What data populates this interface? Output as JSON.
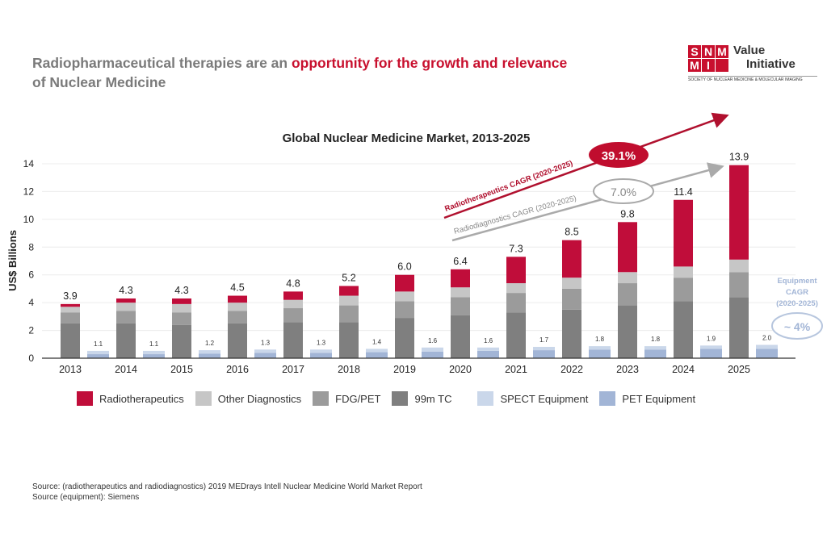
{
  "headline": {
    "part1": "Radiopharmaceutical therapies are an ",
    "highlight": "opportunity for the growth and relevance",
    "part2": "of Nuclear Medicine"
  },
  "logo": {
    "letters": [
      "S",
      "N",
      "M",
      "M",
      "I",
      ""
    ],
    "line1": "Value",
    "line2": "Initiative",
    "society": "SOCIETY OF NUCLEAR MEDICINE & MOLECULAR IMAGING"
  },
  "chart_data": {
    "type": "bar",
    "stacked": true,
    "title": "Global Nuclear Medicine Market, 2013-2025",
    "ylabel": "US$ Billions",
    "ylim": [
      0,
      14
    ],
    "yticks": [
      0,
      2,
      4,
      6,
      8,
      10,
      12,
      14
    ],
    "grid": true,
    "legend_position": "bottom",
    "categories": [
      "2013",
      "2014",
      "2015",
      "2016",
      "2017",
      "2018",
      "2019",
      "2020",
      "2021",
      "2022",
      "2023",
      "2024",
      "2025"
    ],
    "radiopharma_series": [
      {
        "name": "99m TC",
        "color": "#7f7f7f",
        "values": [
          2.5,
          2.5,
          2.4,
          2.5,
          2.6,
          2.6,
          2.9,
          3.1,
          3.3,
          3.5,
          3.8,
          4.1,
          4.4
        ]
      },
      {
        "name": "FDG/PET",
        "color": "#9b9b9b",
        "values": [
          0.8,
          0.9,
          0.9,
          0.9,
          1.0,
          1.2,
          1.2,
          1.3,
          1.4,
          1.5,
          1.6,
          1.7,
          1.8
        ]
      },
      {
        "name": "Other Diagnostics",
        "color": "#c6c6c6",
        "values": [
          0.4,
          0.6,
          0.6,
          0.6,
          0.6,
          0.7,
          0.7,
          0.7,
          0.7,
          0.8,
          0.8,
          0.8,
          0.9
        ]
      },
      {
        "name": "Radiotherapeutics",
        "color": "#c00d3a",
        "values": [
          0.2,
          0.3,
          0.4,
          0.5,
          0.6,
          0.7,
          1.2,
          1.3,
          1.9,
          2.7,
          3.6,
          4.8,
          6.8
        ]
      }
    ],
    "radiopharma_totals": [
      "3.9",
      "4.3",
      "4.3",
      "4.5",
      "4.8",
      "5.2",
      "6.0",
      "6.4",
      "7.3",
      "8.5",
      "9.8",
      "11.4",
      "13.9"
    ],
    "equipment_series": [
      {
        "name": "PET Equipment",
        "color": "#a2b5d6",
        "values": [
          0.6,
          0.6,
          0.7,
          0.8,
          0.8,
          0.9,
          1.0,
          1.1,
          1.2,
          1.3,
          1.3,
          1.4,
          1.4
        ]
      },
      {
        "name": "SPECT Equipment",
        "color": "#cad7ea",
        "values": [
          0.5,
          0.5,
          0.5,
          0.5,
          0.5,
          0.5,
          0.6,
          0.5,
          0.5,
          0.5,
          0.5,
          0.5,
          0.6
        ]
      }
    ],
    "equipment_totals": [
      "1.1",
      "1.1",
      "1.2",
      "1.3",
      "1.3",
      "1.4",
      "1.6",
      "1.6",
      "1.7",
      "1.8",
      "1.8",
      "1.9",
      "2.0"
    ],
    "annotations": {
      "radiotherapeutics_cagr_label": "Radiotherapeutics CAGR (2020-2025)",
      "radiotherapeutics_cagr_value": "39.1%",
      "radiodiagnostics_cagr_label": "Radiodiagnostics CAGR (2020-2025)",
      "radiodiagnostics_cagr_value": "7.0%",
      "equipment_cagr_label": [
        "Equipment",
        "CAGR",
        "(2020-2025)"
      ],
      "equipment_cagr_value": "~ 4%"
    }
  },
  "legend": [
    {
      "label": "Radiotherapeutics",
      "color": "#c00d3a"
    },
    {
      "label": "Other Diagnostics",
      "color": "#c6c6c6"
    },
    {
      "label": "FDG/PET",
      "color": "#9b9b9b"
    },
    {
      "label": "99m TC",
      "color": "#7f7f7f"
    },
    {
      "label": "SPECT Equipment",
      "color": "#cad7ea"
    },
    {
      "label": "PET Equipment",
      "color": "#a2b5d6"
    }
  ],
  "sources": [
    "Source: (radiotherapeutics and radiodiagnostics)  2019  MEDrays Intell Nuclear  Medicine World Market Report",
    "Source (equipment):  Siemens"
  ]
}
